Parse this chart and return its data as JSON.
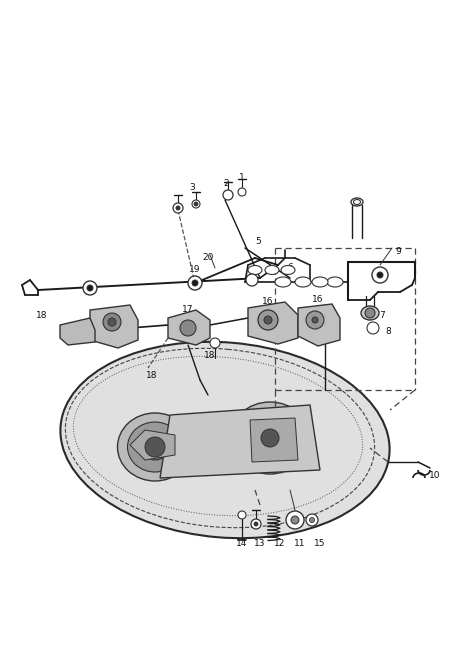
{
  "bg_color": "#ffffff",
  "ink": "#1a1a1a",
  "figsize": [
    4.74,
    6.72
  ],
  "dpi": 100
}
